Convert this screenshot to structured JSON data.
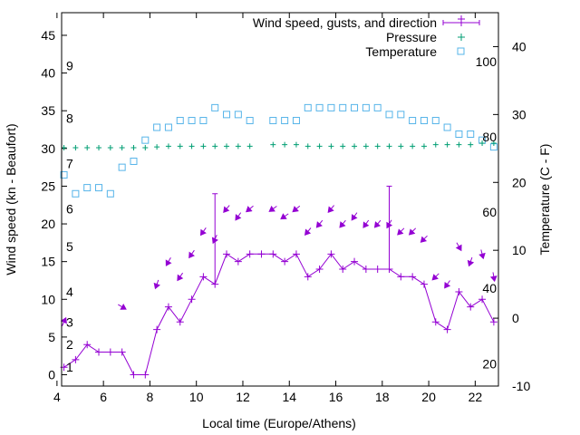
{
  "chart_data": {
    "type": "line",
    "x_unit": "hours",
    "x_axis": {
      "label": "Local time (Europe/Athens)",
      "range": [
        4.2,
        23
      ],
      "ticks": [
        "4",
        "6",
        "8",
        "10",
        "12",
        "14",
        "16",
        "18",
        "20",
        "22"
      ]
    },
    "y_axis_left": {
      "label": "Wind speed (kn - Beaufort)",
      "range": [
        -1.5,
        48
      ],
      "ticks": [
        "0",
        "5",
        "10",
        "15",
        "20",
        "25",
        "30",
        "35",
        "40",
        "45"
      ]
    },
    "y_axis_right": {
      "label": "Temperature (C - F)",
      "range": [
        -10,
        45
      ],
      "ticks": [
        "-10",
        "0",
        "10",
        "20",
        "30",
        "40"
      ]
    },
    "beaufort_labels": [
      {
        "label": "1",
        "y": 1
      },
      {
        "label": "2",
        "y": 4
      },
      {
        "label": "3",
        "y": 7
      },
      {
        "label": "4",
        "y": 11
      },
      {
        "label": "5",
        "y": 17
      },
      {
        "label": "6",
        "y": 22
      },
      {
        "label": "7",
        "y": 28
      },
      {
        "label": "8",
        "y": 34
      },
      {
        "label": "9",
        "y": 41
      }
    ],
    "fahrenheit_labels": [
      {
        "label": "20",
        "y": -6.7
      },
      {
        "label": "40",
        "y": 4.4
      },
      {
        "label": "60",
        "y": 15.6
      },
      {
        "label": "80",
        "y": 26.7
      },
      {
        "label": "100",
        "y": 37.8
      }
    ],
    "legend": {
      "position": "top-right",
      "entries": [
        {
          "label": "Wind speed, gusts, and direction",
          "color": "#9400d3",
          "symbol": "line-plus"
        },
        {
          "label": "Pressure",
          "color": "#009e73",
          "symbol": "plus"
        },
        {
          "label": "Temperature",
          "color": "#56b4e9",
          "symbol": "square"
        }
      ]
    },
    "series": [
      {
        "key": "wind",
        "color": "#9400d3",
        "points": [
          {
            "x": 4.3,
            "y": 1,
            "dir": 205
          },
          {
            "x": 4.8,
            "y": 2,
            "dir": null
          },
          {
            "x": 5.3,
            "y": 4,
            "dir": null
          },
          {
            "x": 5.8,
            "y": 3,
            "dir": null
          },
          {
            "x": 6.3,
            "y": 3,
            "dir": null
          },
          {
            "x": 6.8,
            "y": 3,
            "dir": 300
          },
          {
            "x": 7.3,
            "y": 0,
            "dir": null
          },
          {
            "x": 7.8,
            "y": 0,
            "dir": null
          },
          {
            "x": 8.3,
            "y": 6,
            "dir": 20
          },
          {
            "x": 8.8,
            "y": 9,
            "dir": 30
          },
          {
            "x": 9.3,
            "y": 7,
            "dir": 35
          },
          {
            "x": 9.8,
            "y": 10,
            "dir": 35
          },
          {
            "x": 10.3,
            "y": 13,
            "dir": 35
          },
          {
            "x": 10.8,
            "y": 12,
            "dir": 25,
            "gust": 24
          },
          {
            "x": 11.3,
            "y": 16,
            "dir": 40
          },
          {
            "x": 11.8,
            "y": 15,
            "dir": 35
          },
          {
            "x": 12.3,
            "y": 16,
            "dir": 50
          },
          {
            "x": 12.8,
            "y": 16,
            "dir": null
          },
          {
            "x": 13.3,
            "y": 16,
            "dir": 55
          },
          {
            "x": 13.8,
            "y": 15,
            "dir": 55
          },
          {
            "x": 14.3,
            "y": 16,
            "dir": 50
          },
          {
            "x": 14.8,
            "y": 13,
            "dir": 40
          },
          {
            "x": 15.3,
            "y": 14,
            "dir": 40
          },
          {
            "x": 15.8,
            "y": 16,
            "dir": 40
          },
          {
            "x": 16.3,
            "y": 14,
            "dir": 40
          },
          {
            "x": 16.8,
            "y": 15,
            "dir": 35
          },
          {
            "x": 17.3,
            "y": 14,
            "dir": 35
          },
          {
            "x": 17.8,
            "y": 14,
            "dir": 40
          },
          {
            "x": 18.3,
            "y": 14,
            "dir": 30,
            "gust": 25
          },
          {
            "x": 18.8,
            "y": 13,
            "dir": 45
          },
          {
            "x": 19.3,
            "y": 13,
            "dir": 45
          },
          {
            "x": 19.8,
            "y": 12,
            "dir": 45
          },
          {
            "x": 20.3,
            "y": 7,
            "dir": 45
          },
          {
            "x": 20.8,
            "y": 6,
            "dir": 35
          },
          {
            "x": 21.3,
            "y": 11,
            "dir": 330
          },
          {
            "x": 21.8,
            "y": 9,
            "dir": 20
          },
          {
            "x": 22.3,
            "y": 10,
            "dir": 345
          },
          {
            "x": 22.8,
            "y": 7,
            "dir": 350
          }
        ]
      },
      {
        "key": "pressure",
        "color": "#009e73",
        "points": [
          {
            "x": 4.3,
            "y": 30.1
          },
          {
            "x": 4.8,
            "y": 30.1
          },
          {
            "x": 5.3,
            "y": 30.1
          },
          {
            "x": 5.8,
            "y": 30.1
          },
          {
            "x": 6.3,
            "y": 30.1
          },
          {
            "x": 6.8,
            "y": 30.1
          },
          {
            "x": 7.3,
            "y": 30.1
          },
          {
            "x": 7.8,
            "y": 30.1
          },
          {
            "x": 8.3,
            "y": 30.2
          },
          {
            "x": 8.8,
            "y": 30.3
          },
          {
            "x": 9.3,
            "y": 30.3
          },
          {
            "x": 9.8,
            "y": 30.3
          },
          {
            "x": 10.3,
            "y": 30.3
          },
          {
            "x": 10.8,
            "y": 30.3
          },
          {
            "x": 11.3,
            "y": 30.3
          },
          {
            "x": 11.8,
            "y": 30.3
          },
          {
            "x": 12.3,
            "y": 30.3
          },
          {
            "x": 13.3,
            "y": 30.5
          },
          {
            "x": 13.8,
            "y": 30.5
          },
          {
            "x": 14.3,
            "y": 30.5
          },
          {
            "x": 14.8,
            "y": 30.3
          },
          {
            "x": 15.3,
            "y": 30.3
          },
          {
            "x": 15.8,
            "y": 30.3
          },
          {
            "x": 16.3,
            "y": 30.3
          },
          {
            "x": 16.8,
            "y": 30.3
          },
          {
            "x": 17.3,
            "y": 30.3
          },
          {
            "x": 17.8,
            "y": 30.3
          },
          {
            "x": 18.3,
            "y": 30.3
          },
          {
            "x": 18.8,
            "y": 30.3
          },
          {
            "x": 19.3,
            "y": 30.3
          },
          {
            "x": 19.8,
            "y": 30.3
          },
          {
            "x": 20.3,
            "y": 30.5
          },
          {
            "x": 20.8,
            "y": 30.5
          },
          {
            "x": 21.3,
            "y": 30.5
          },
          {
            "x": 21.8,
            "y": 30.5
          },
          {
            "x": 22.3,
            "y": 30.7
          },
          {
            "x": 22.8,
            "y": 30.7
          }
        ]
      },
      {
        "key": "temperature",
        "color": "#56b4e9",
        "points": [
          {
            "x": 4.3,
            "y": 26.5
          },
          {
            "x": 4.8,
            "y": 24
          },
          {
            "x": 5.3,
            "y": 24.8
          },
          {
            "x": 5.8,
            "y": 24.8
          },
          {
            "x": 6.3,
            "y": 24
          },
          {
            "x": 6.8,
            "y": 27.5
          },
          {
            "x": 7.3,
            "y": 28.3
          },
          {
            "x": 7.8,
            "y": 31.1
          },
          {
            "x": 8.3,
            "y": 32.8
          },
          {
            "x": 8.8,
            "y": 32.8
          },
          {
            "x": 9.3,
            "y": 33.7
          },
          {
            "x": 9.8,
            "y": 33.7
          },
          {
            "x": 10.3,
            "y": 33.7
          },
          {
            "x": 10.8,
            "y": 35.4
          },
          {
            "x": 11.3,
            "y": 34.5
          },
          {
            "x": 11.8,
            "y": 34.5
          },
          {
            "x": 12.3,
            "y": 33.7
          },
          {
            "x": 13.3,
            "y": 33.7
          },
          {
            "x": 13.8,
            "y": 33.7
          },
          {
            "x": 14.3,
            "y": 33.7
          },
          {
            "x": 14.8,
            "y": 35.4
          },
          {
            "x": 15.3,
            "y": 35.4
          },
          {
            "x": 15.8,
            "y": 35.4
          },
          {
            "x": 16.3,
            "y": 35.4
          },
          {
            "x": 16.8,
            "y": 35.4
          },
          {
            "x": 17.3,
            "y": 35.4
          },
          {
            "x": 17.8,
            "y": 35.4
          },
          {
            "x": 18.3,
            "y": 34.5
          },
          {
            "x": 18.8,
            "y": 34.5
          },
          {
            "x": 19.3,
            "y": 33.7
          },
          {
            "x": 19.8,
            "y": 33.7
          },
          {
            "x": 20.3,
            "y": 33.7
          },
          {
            "x": 20.8,
            "y": 32.8
          },
          {
            "x": 21.3,
            "y": 31.9
          },
          {
            "x": 21.8,
            "y": 31.9
          },
          {
            "x": 22.3,
            "y": 31.1
          },
          {
            "x": 22.8,
            "y": 30.2
          }
        ]
      }
    ]
  }
}
